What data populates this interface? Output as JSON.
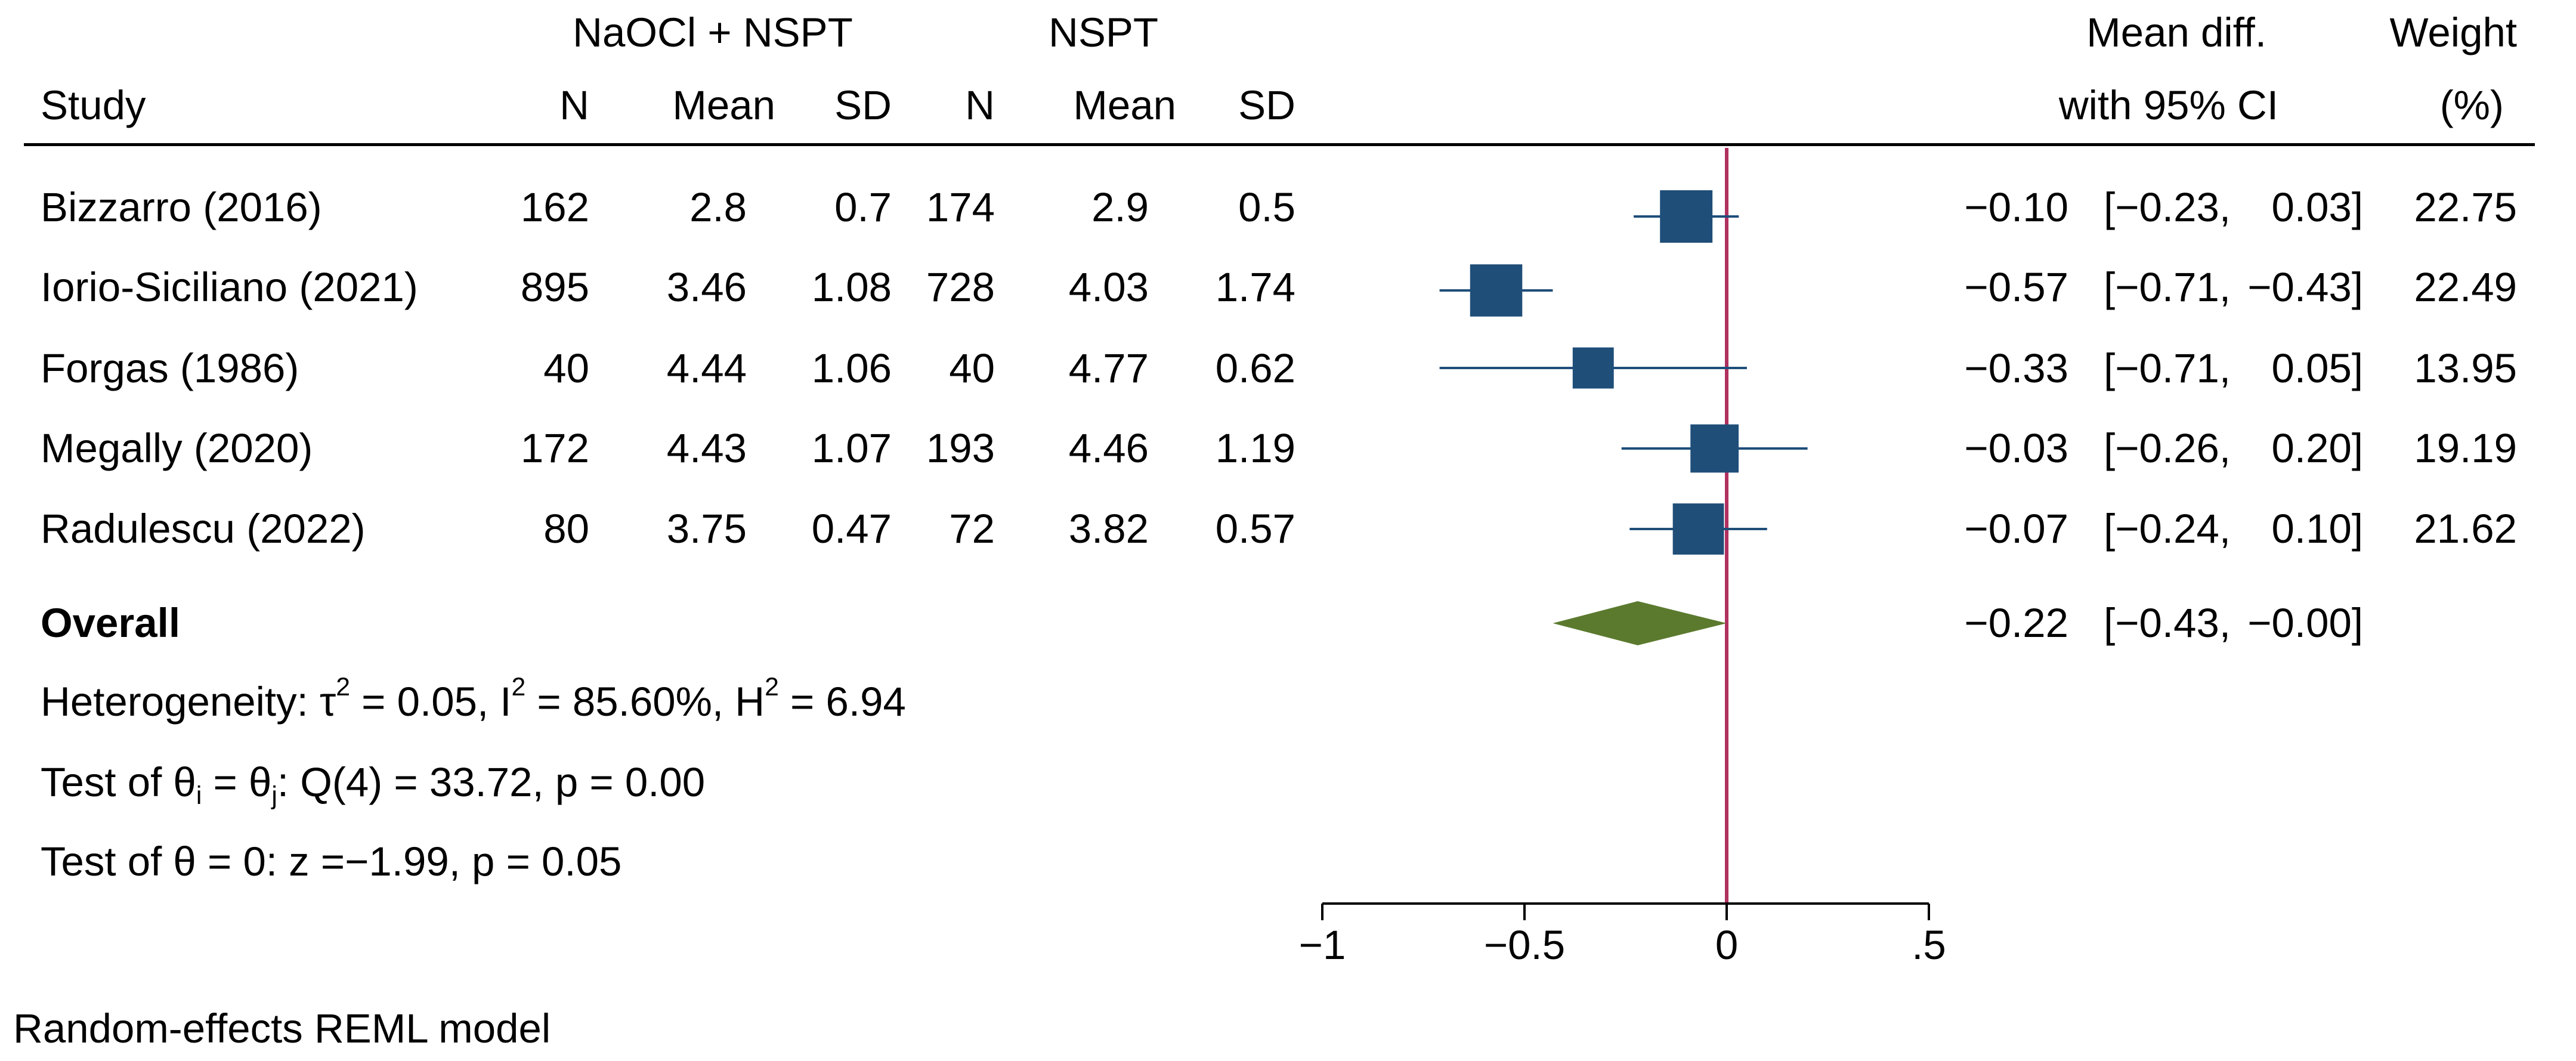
{
  "header": {
    "group1": "NaOCl + NSPT",
    "group2": "NSPT",
    "study": "Study",
    "n": "N",
    "mean": "Mean",
    "sd": "SD",
    "effect_line1": "Mean diff.",
    "effect_line2": "with 95% CI",
    "weight_line1": "Weight",
    "weight_line2": "(%)"
  },
  "rows": [
    {
      "study": "Bizzarro (2016)",
      "n1": "162",
      "mean1": "2.8",
      "sd1": "0.7",
      "n2": "174",
      "mean2": "2.9",
      "sd2": "0.5",
      "md_text": "−0.10",
      "ci_lo_text": "[−0.23,",
      "ci_hi_text": "0.03]",
      "weight": "22.75",
      "md": -0.1,
      "lo": -0.23,
      "hi": 0.03
    },
    {
      "study": "Iorio-Siciliano (2021)",
      "n1": "895",
      "mean1": "3.46",
      "sd1": "1.08",
      "n2": "728",
      "mean2": "4.03",
      "sd2": "1.74",
      "md_text": "−0.57",
      "ci_lo_text": "[−0.71,",
      "ci_hi_text": "−0.43]",
      "weight": "22.49",
      "md": -0.57,
      "lo": -0.71,
      "hi": -0.43
    },
    {
      "study": "Forgas (1986)",
      "n1": "40",
      "mean1": "4.44",
      "sd1": "1.06",
      "n2": "40",
      "mean2": "4.77",
      "sd2": "0.62",
      "md_text": "−0.33",
      "ci_lo_text": "[−0.71,",
      "ci_hi_text": "0.05]",
      "weight": "13.95",
      "md": -0.33,
      "lo": -0.71,
      "hi": 0.05
    },
    {
      "study": "Megally (2020)",
      "n1": "172",
      "mean1": "4.43",
      "sd1": "1.07",
      "n2": "193",
      "mean2": "4.46",
      "sd2": "1.19",
      "md_text": "−0.03",
      "ci_lo_text": "[−0.26,",
      "ci_hi_text": "0.20]",
      "weight": "19.19",
      "md": -0.03,
      "lo": -0.26,
      "hi": 0.2
    },
    {
      "study": "Radulescu (2022)",
      "n1": "80",
      "mean1": "3.75",
      "sd1": "0.47",
      "n2": "72",
      "mean2": "3.82",
      "sd2": "0.57",
      "md_text": "−0.07",
      "ci_lo_text": "[−0.24,",
      "ci_hi_text": "0.10]",
      "weight": "21.62",
      "md": -0.07,
      "lo": -0.24,
      "hi": 0.1
    }
  ],
  "overall": {
    "label": "Overall",
    "md_text": "−0.22",
    "ci_lo_text": "[−0.43,",
    "ci_hi_text": "−0.00]",
    "md": -0.22,
    "lo": -0.43,
    "hi": 0.0
  },
  "stats": {
    "het_prefix": "Heterogeneity: ",
    "tau": "τ",
    "tau_sup": "2",
    "tau_val": " = 0.05, I",
    "i_sup": "2",
    "i_val": " = 85.60%, H",
    "h_sup": "2",
    "h_val": " = 6.94",
    "q_prefix": "Test of θ",
    "q_sub_i": "i",
    "q_mid": " = θ",
    "q_sub_j": "j",
    "q_val": ": Q(4) = 33.72, p = 0.00",
    "z_text": "Test of θ = 0: z =−1.99, p = 0.05"
  },
  "model_note": "Random-effects REML model",
  "colors": {
    "box": "#1f4e79",
    "ci": "#1f4e79",
    "diamond": "#5b7a2e",
    "null_line": "#b03060",
    "axis": "#000000"
  },
  "chart_data": {
    "type": "forest",
    "measure": "Mean diff. with 95% CI",
    "x_ticks": [
      -1,
      -0.5,
      0,
      0.5
    ],
    "x_tick_labels": [
      "−1",
      "−0.5",
      "0",
      ".5"
    ],
    "xlim": [
      -1,
      0.5
    ],
    "null_value": 0,
    "studies": [
      "Bizzarro (2016)",
      "Iorio-Siciliano (2021)",
      "Forgas (1986)",
      "Megally (2020)",
      "Radulescu (2022)"
    ],
    "mean_diff": [
      -0.1,
      -0.57,
      -0.33,
      -0.03,
      -0.07
    ],
    "ci_lower": [
      -0.23,
      -0.71,
      -0.71,
      -0.26,
      -0.24
    ],
    "ci_upper": [
      0.03,
      -0.43,
      0.05,
      0.2,
      0.1
    ],
    "weights": [
      22.75,
      22.49,
      13.95,
      19.19,
      21.62
    ],
    "overall": {
      "mean_diff": -0.22,
      "ci_lower": -0.43,
      "ci_upper": 0.0
    }
  }
}
